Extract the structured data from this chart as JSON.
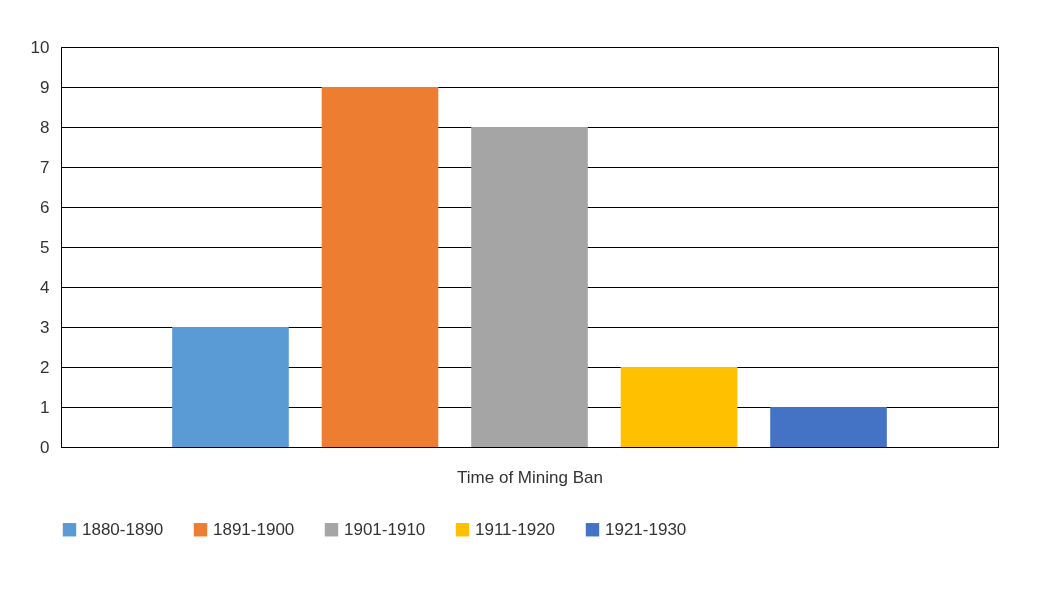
{
  "chart_data": {
    "type": "bar",
    "xlabel": "Time of Mining Ban",
    "categories": [
      null
    ],
    "series": [
      {
        "name": "1880-1890",
        "color": "#5b9bd5",
        "values": [
          3
        ]
      },
      {
        "name": "1891-1900",
        "color": "#ed7d31",
        "values": [
          9
        ]
      },
      {
        "name": "1901-1910",
        "color": "#a5a5a5",
        "values": [
          8
        ]
      },
      {
        "name": "1911-1920",
        "color": "#ffc000",
        "values": [
          2
        ]
      },
      {
        "name": "1921-1930",
        "color": "#4472c4",
        "values": [
          1
        ]
      }
    ],
    "ylim": [
      0,
      10
    ],
    "yticks": [
      0,
      1,
      2,
      3,
      4,
      5,
      6,
      7,
      8,
      9,
      10
    ],
    "grid": "y",
    "legend": "bottom"
  }
}
